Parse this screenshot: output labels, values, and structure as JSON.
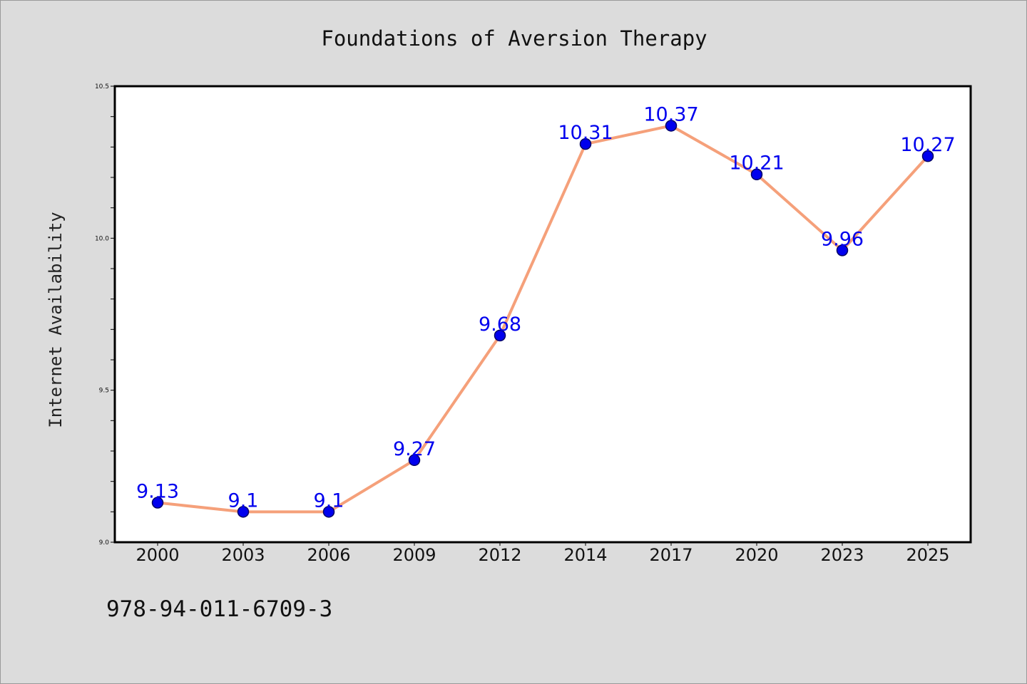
{
  "chart_data": {
    "type": "line",
    "title": "Foundations of Aversion Therapy",
    "xlabel": "",
    "ylabel": "Internet Availability",
    "categories": [
      "2000",
      "2003",
      "2006",
      "2009",
      "2012",
      "2014",
      "2017",
      "2020",
      "2023",
      "2025"
    ],
    "series": [
      {
        "values": [
          9.13,
          9.1,
          9.1,
          9.27,
          9.68,
          10.31,
          10.37,
          10.21,
          9.96,
          10.27
        ]
      }
    ],
    "data_labels": [
      "9.13",
      "9.1",
      "9.1",
      "9.27",
      "9.68",
      "10.31",
      "10.37",
      "10.21",
      "9.96",
      "10.27"
    ],
    "ylim": [
      9.0,
      10.5
    ],
    "yticks": [
      "9.0",
      "9.5",
      "10.0",
      "10.5"
    ],
    "grid": false,
    "legend": "none"
  },
  "footnote": "978-94-011-6709-3",
  "colors": {
    "background": "#dcdcdc",
    "plot_area": "#ffffff",
    "line": "#f5a07a",
    "marker_fill": "#0000ee",
    "marker_edge": "#000066",
    "data_label": "#0000ee"
  }
}
